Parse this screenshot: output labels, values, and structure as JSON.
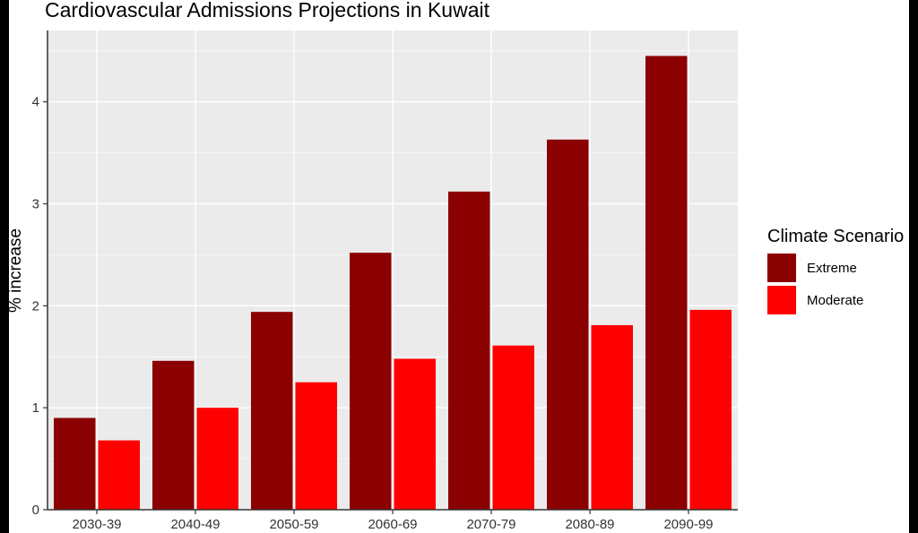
{
  "chart_data": {
    "type": "bar",
    "title": "Cardiovascular Admissions Projections in Kuwait",
    "xlabel": "",
    "ylabel": "% increase",
    "categories": [
      "2030-39",
      "2040-49",
      "2050-59",
      "2060-69",
      "2070-79",
      "2080-89",
      "2090-99"
    ],
    "series": [
      {
        "name": "Extreme",
        "color": "#8b0000",
        "values": [
          0.9,
          1.46,
          1.94,
          2.52,
          3.12,
          3.63,
          4.45
        ]
      },
      {
        "name": "Moderate",
        "color": "#ff0000",
        "values": [
          0.68,
          1.0,
          1.25,
          1.48,
          1.61,
          1.81,
          1.96
        ]
      }
    ],
    "ylim": [
      0,
      4.7
    ],
    "yticks": [
      0,
      1,
      2,
      3,
      4
    ],
    "grid": true,
    "legend": {
      "title": "Climate Scenario",
      "position": "right"
    },
    "panel_background": "#ebebeb",
    "gridline_color": "#ffffff"
  }
}
